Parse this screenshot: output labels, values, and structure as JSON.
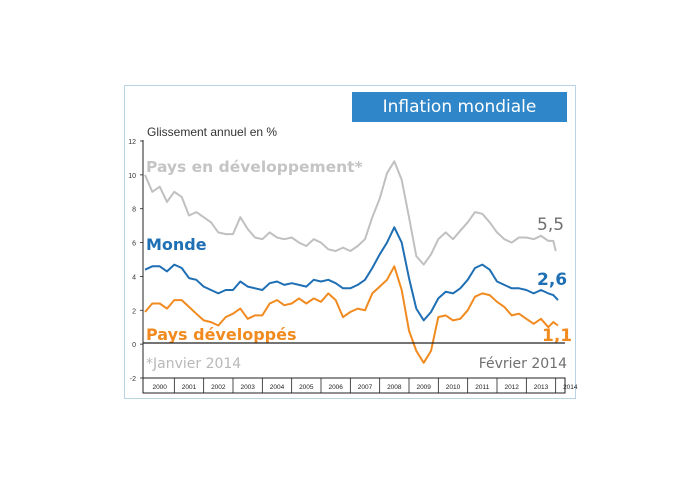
{
  "chart_data": {
    "type": "line",
    "title": "Inflation mondiale",
    "ylabel": "Glissement annuel en %",
    "ylim": [
      -2,
      12
    ],
    "y_ticks": [
      "-2",
      "0",
      "2",
      "4",
      "6",
      "8",
      "10",
      "12"
    ],
    "xlim": [
      2000,
      2014.25
    ],
    "x_ticks": [
      "2000",
      "2001",
      "2002",
      "2003",
      "2004",
      "2005",
      "2006",
      "2007",
      "2008",
      "2009",
      "2010",
      "2011",
      "2012",
      "2013",
      "2014"
    ],
    "annotations": {
      "footnote": "*Janvier 2014",
      "date": "Février 2014"
    },
    "series": [
      {
        "name": "Pays en développement*",
        "color": "#c0c0c0",
        "end_label": "5,5",
        "end_label_color": "#6f6f6f",
        "points": [
          [
            2000,
            10
          ],
          [
            2000.25,
            9
          ],
          [
            2000.5,
            9.3
          ],
          [
            2000.75,
            8.4
          ],
          [
            2001,
            9
          ],
          [
            2001.25,
            8.7
          ],
          [
            2001.5,
            7.6
          ],
          [
            2001.75,
            7.8
          ],
          [
            2002,
            7.5
          ],
          [
            2002.25,
            7.2
          ],
          [
            2002.5,
            6.6
          ],
          [
            2002.75,
            6.5
          ],
          [
            2003,
            6.5
          ],
          [
            2003.25,
            7.5
          ],
          [
            2003.5,
            6.8
          ],
          [
            2003.75,
            6.3
          ],
          [
            2004,
            6.2
          ],
          [
            2004.25,
            6.6
          ],
          [
            2004.5,
            6.3
          ],
          [
            2004.75,
            6.2
          ],
          [
            2005,
            6.3
          ],
          [
            2005.25,
            6
          ],
          [
            2005.5,
            5.8
          ],
          [
            2005.75,
            6.2
          ],
          [
            2006,
            6
          ],
          [
            2006.25,
            5.6
          ],
          [
            2006.5,
            5.5
          ],
          [
            2006.75,
            5.7
          ],
          [
            2007,
            5.5
          ],
          [
            2007.25,
            5.8
          ],
          [
            2007.5,
            6.2
          ],
          [
            2007.75,
            7.5
          ],
          [
            2008,
            8.6
          ],
          [
            2008.25,
            10.1
          ],
          [
            2008.5,
            10.8
          ],
          [
            2008.75,
            9.7
          ],
          [
            2009,
            7.5
          ],
          [
            2009.25,
            5.2
          ],
          [
            2009.5,
            4.7
          ],
          [
            2009.75,
            5.3
          ],
          [
            2010,
            6.2
          ],
          [
            2010.25,
            6.6
          ],
          [
            2010.5,
            6.2
          ],
          [
            2010.75,
            6.7
          ],
          [
            2011,
            7.2
          ],
          [
            2011.25,
            7.8
          ],
          [
            2011.5,
            7.7
          ],
          [
            2011.75,
            7.2
          ],
          [
            2012,
            6.6
          ],
          [
            2012.25,
            6.2
          ],
          [
            2012.5,
            6
          ],
          [
            2012.75,
            6.3
          ],
          [
            2013,
            6.3
          ],
          [
            2013.25,
            6.2
          ],
          [
            2013.5,
            6.4
          ],
          [
            2013.75,
            6.1
          ],
          [
            2013.92,
            6.1
          ],
          [
            2014,
            5.5
          ]
        ]
      },
      {
        "name": "Monde",
        "color": "#1f6fb5",
        "end_label": "2,6",
        "end_label_color": "#1f6fb5",
        "points": [
          [
            2000,
            4.4
          ],
          [
            2000.25,
            4.6
          ],
          [
            2000.5,
            4.6
          ],
          [
            2000.75,
            4.3
          ],
          [
            2001,
            4.7
          ],
          [
            2001.25,
            4.5
          ],
          [
            2001.5,
            3.9
          ],
          [
            2001.75,
            3.8
          ],
          [
            2002,
            3.4
          ],
          [
            2002.25,
            3.2
          ],
          [
            2002.5,
            3
          ],
          [
            2002.75,
            3.2
          ],
          [
            2003,
            3.2
          ],
          [
            2003.25,
            3.7
          ],
          [
            2003.5,
            3.4
          ],
          [
            2003.75,
            3.3
          ],
          [
            2004,
            3.2
          ],
          [
            2004.25,
            3.6
          ],
          [
            2004.5,
            3.7
          ],
          [
            2004.75,
            3.5
          ],
          [
            2005,
            3.6
          ],
          [
            2005.25,
            3.5
          ],
          [
            2005.5,
            3.4
          ],
          [
            2005.75,
            3.8
          ],
          [
            2006,
            3.7
          ],
          [
            2006.25,
            3.8
          ],
          [
            2006.5,
            3.6
          ],
          [
            2006.75,
            3.3
          ],
          [
            2007,
            3.3
          ],
          [
            2007.25,
            3.5
          ],
          [
            2007.5,
            3.8
          ],
          [
            2007.75,
            4.5
          ],
          [
            2008,
            5.3
          ],
          [
            2008.25,
            6
          ],
          [
            2008.5,
            6.9
          ],
          [
            2008.75,
            6
          ],
          [
            2009,
            3.9
          ],
          [
            2009.25,
            2.1
          ],
          [
            2009.5,
            1.4
          ],
          [
            2009.75,
            1.9
          ],
          [
            2010,
            2.7
          ],
          [
            2010.25,
            3.1
          ],
          [
            2010.5,
            3
          ],
          [
            2010.75,
            3.3
          ],
          [
            2011,
            3.8
          ],
          [
            2011.25,
            4.5
          ],
          [
            2011.5,
            4.7
          ],
          [
            2011.75,
            4.4
          ],
          [
            2012,
            3.7
          ],
          [
            2012.25,
            3.5
          ],
          [
            2012.5,
            3.3
          ],
          [
            2012.75,
            3.3
          ],
          [
            2013,
            3.2
          ],
          [
            2013.25,
            3
          ],
          [
            2013.5,
            3.2
          ],
          [
            2013.75,
            3
          ],
          [
            2013.92,
            2.9
          ],
          [
            2014.08,
            2.6
          ]
        ]
      },
      {
        "name": "Pays développés",
        "color": "#f18a1f",
        "end_label": "1,1",
        "end_label_color": "#f18a1f",
        "points": [
          [
            2000,
            1.9
          ],
          [
            2000.25,
            2.4
          ],
          [
            2000.5,
            2.4
          ],
          [
            2000.75,
            2.1
          ],
          [
            2001,
            2.6
          ],
          [
            2001.25,
            2.6
          ],
          [
            2001.5,
            2.2
          ],
          [
            2001.75,
            1.8
          ],
          [
            2002,
            1.4
          ],
          [
            2002.25,
            1.3
          ],
          [
            2002.5,
            1.1
          ],
          [
            2002.75,
            1.6
          ],
          [
            2003,
            1.8
          ],
          [
            2003.25,
            2.1
          ],
          [
            2003.5,
            1.5
          ],
          [
            2003.75,
            1.7
          ],
          [
            2004,
            1.7
          ],
          [
            2004.25,
            2.4
          ],
          [
            2004.5,
            2.6
          ],
          [
            2004.75,
            2.3
          ],
          [
            2005,
            2.4
          ],
          [
            2005.25,
            2.7
          ],
          [
            2005.5,
            2.4
          ],
          [
            2005.75,
            2.7
          ],
          [
            2006,
            2.5
          ],
          [
            2006.25,
            3
          ],
          [
            2006.5,
            2.6
          ],
          [
            2006.75,
            1.6
          ],
          [
            2007,
            1.9
          ],
          [
            2007.25,
            2.1
          ],
          [
            2007.5,
            2
          ],
          [
            2007.75,
            3
          ],
          [
            2008,
            3.4
          ],
          [
            2008.25,
            3.8
          ],
          [
            2008.5,
            4.6
          ],
          [
            2008.75,
            3.2
          ],
          [
            2009,
            0.8
          ],
          [
            2009.25,
            -0.4
          ],
          [
            2009.5,
            -1.1
          ],
          [
            2009.75,
            -0.4
          ],
          [
            2010,
            1.6
          ],
          [
            2010.25,
            1.7
          ],
          [
            2010.5,
            1.4
          ],
          [
            2010.75,
            1.5
          ],
          [
            2011,
            2
          ],
          [
            2011.25,
            2.8
          ],
          [
            2011.5,
            3
          ],
          [
            2011.75,
            2.9
          ],
          [
            2012,
            2.5
          ],
          [
            2012.25,
            2.2
          ],
          [
            2012.5,
            1.7
          ],
          [
            2012.75,
            1.8
          ],
          [
            2013,
            1.5
          ],
          [
            2013.25,
            1.2
          ],
          [
            2013.5,
            1.5
          ],
          [
            2013.75,
            1
          ],
          [
            2013.92,
            1.3
          ],
          [
            2014.08,
            1.1
          ]
        ]
      }
    ],
    "grid": false,
    "legend": "inline labels"
  }
}
